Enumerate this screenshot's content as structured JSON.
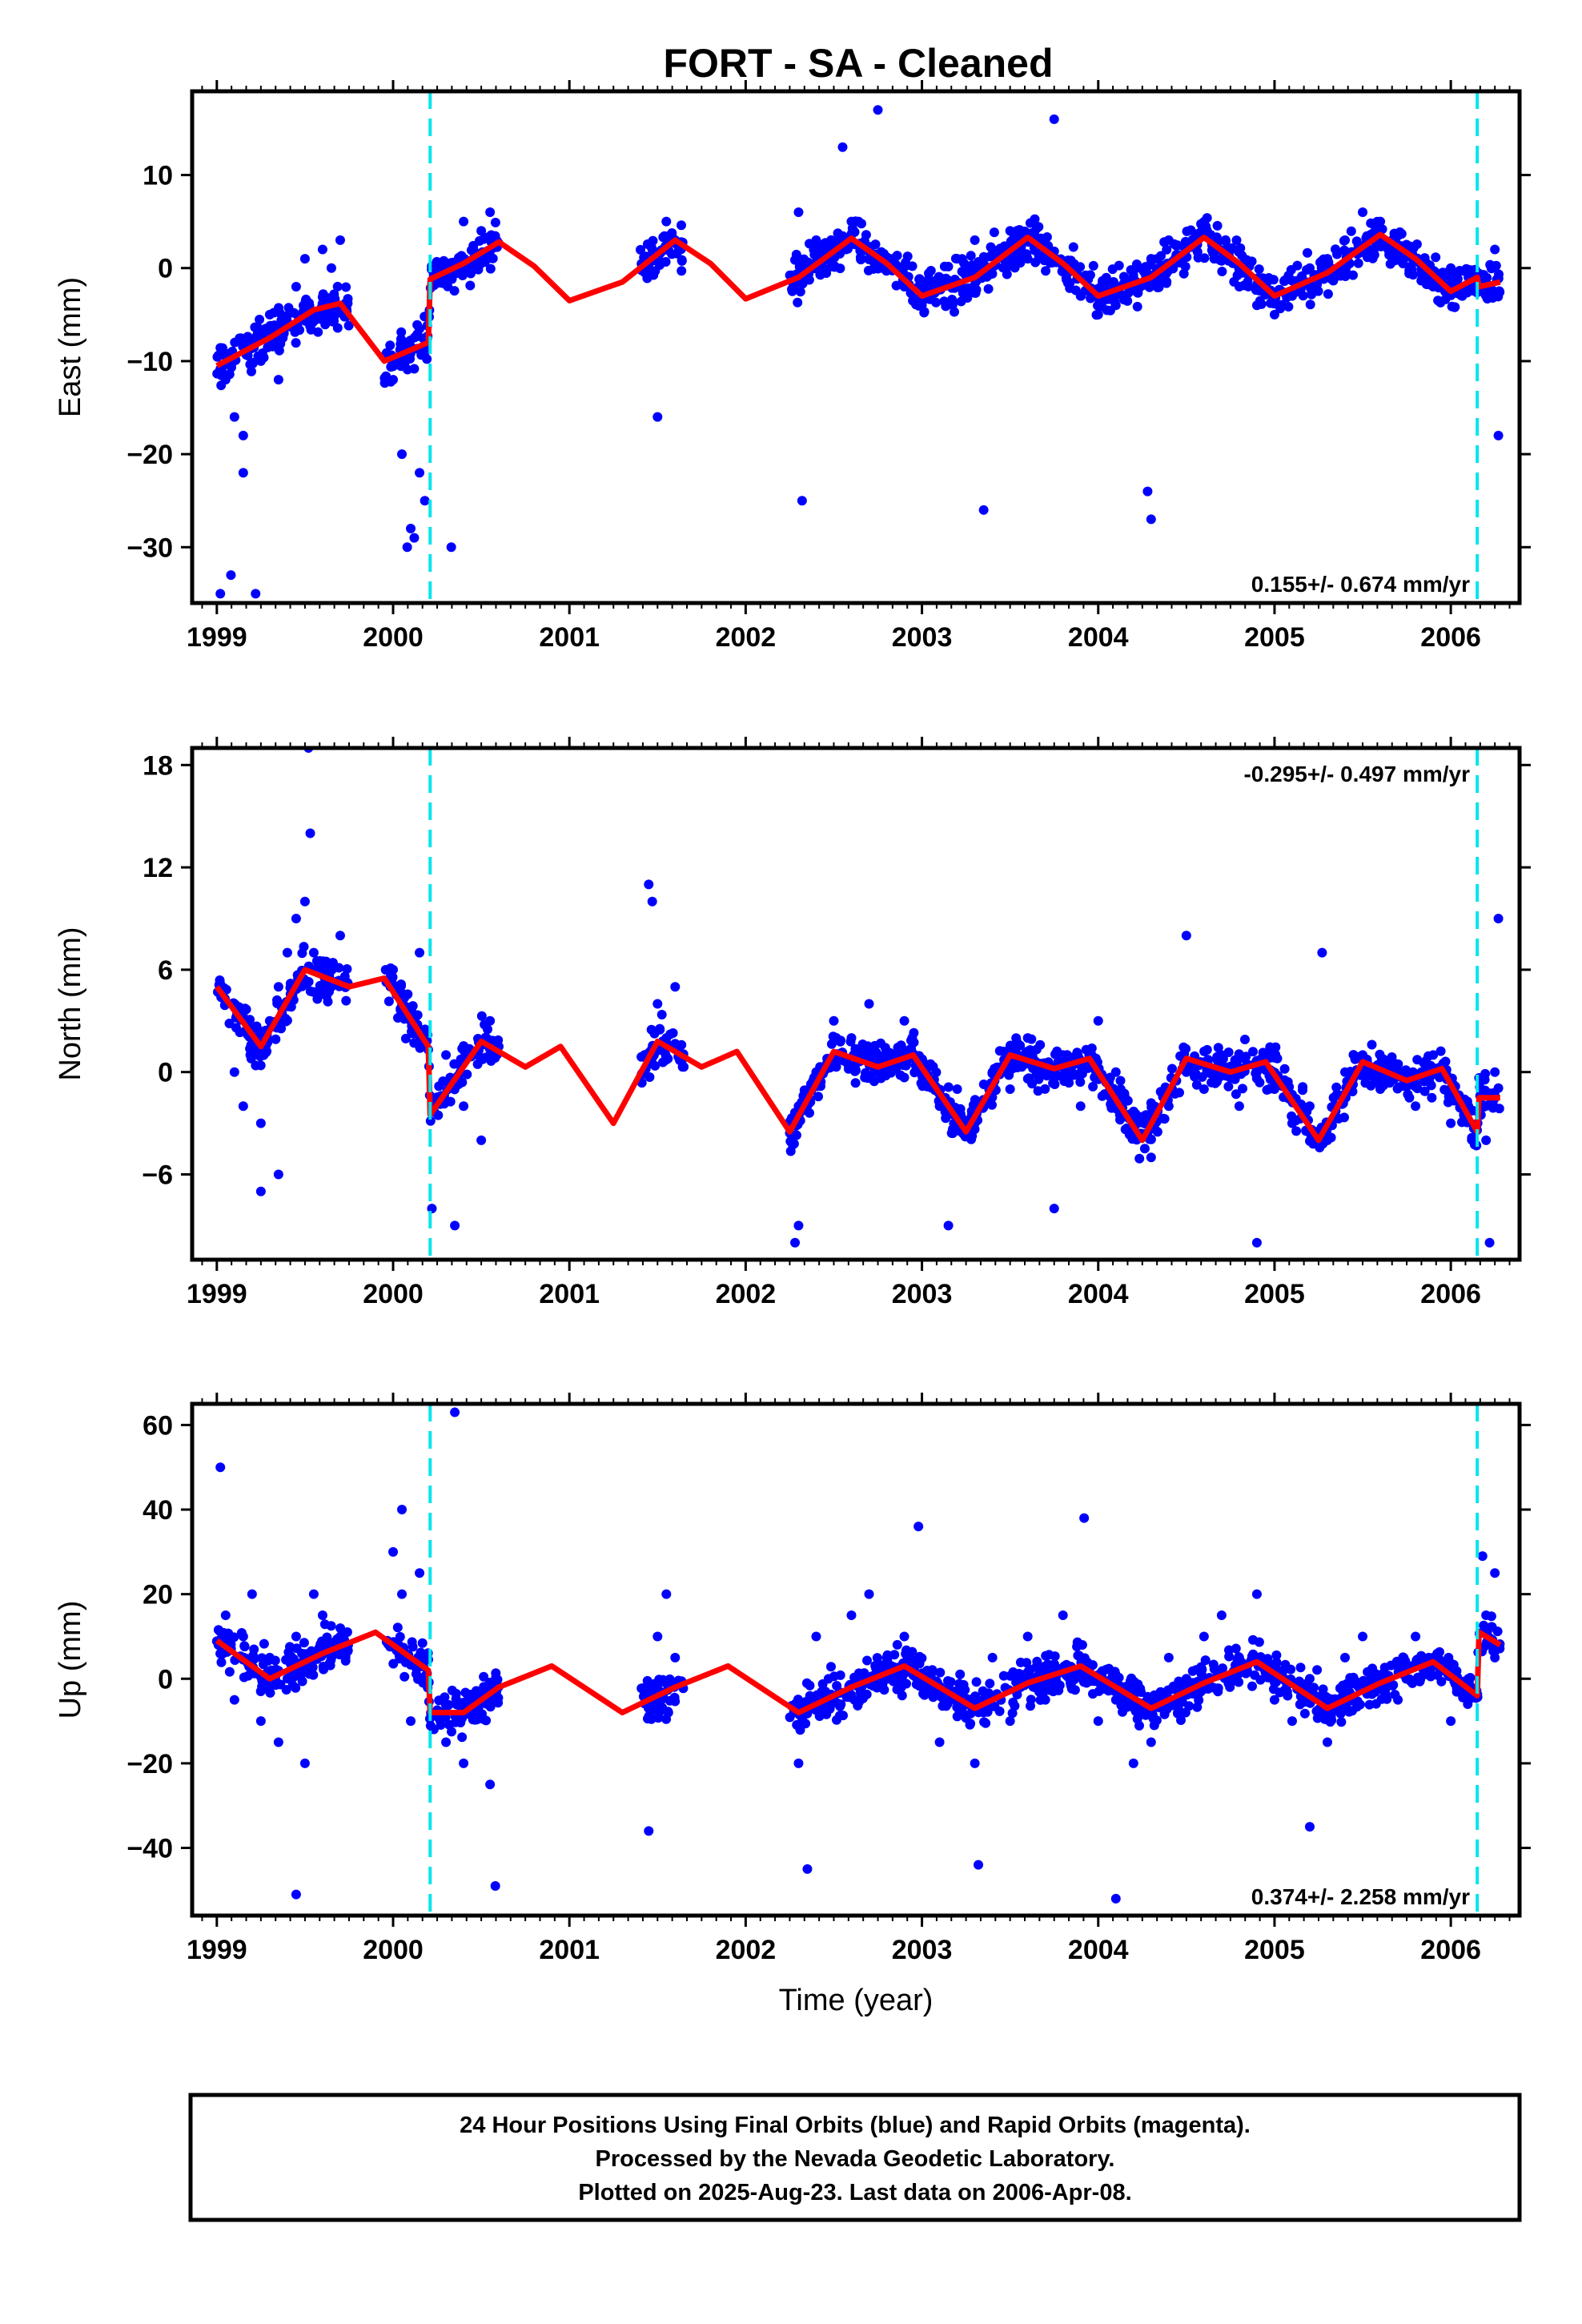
{
  "title": "FORT  - SA - Cleaned",
  "footer": {
    "lines": [
      "24 Hour Positions Using Final Orbits (blue) and Rapid Orbits (magenta).",
      "Processed by the Nevada Geodetic Laboratory.",
      "Plotted on 2025-Aug-23. Last data on 2006-Apr-08."
    ]
  },
  "colors": {
    "points": "#0000ff",
    "model": "#ff0000",
    "breaks": "#00e5ee",
    "frame": "#000000"
  },
  "chart_data": [
    {
      "type": "scatter",
      "ylabel": "East (mm)",
      "xlabel": "",
      "xlim": [
        1998.86,
        2006.39
      ],
      "ylim": [
        -36,
        19
      ],
      "xticks": [
        1999,
        2000,
        2001,
        2002,
        2003,
        2004,
        2005,
        2006
      ],
      "yticks": [
        10,
        0,
        -10,
        -20,
        -30
      ],
      "rate": "0.155+/- 0.674 mm/yr",
      "rate_position": "bottom-right",
      "breaks": [
        2000.21,
        2006.15
      ],
      "data_segments": [
        [
          1999.0,
          1999.75
        ],
        [
          1999.95,
          2000.6
        ],
        [
          2001.4,
          2001.65
        ],
        [
          2002.25,
          2006.28
        ]
      ],
      "model": {
        "x": [
          1999.0,
          1999.3,
          1999.55,
          1999.7,
          1999.95,
          2000.2,
          2000.21,
          2000.4,
          2000.6,
          2000.8,
          2001.0,
          2001.3,
          2001.6,
          2001.8,
          2002.0,
          2002.3,
          2002.6,
          2002.8,
          2003.0,
          2003.3,
          2003.6,
          2003.8,
          2004.0,
          2004.3,
          2004.6,
          2004.8,
          2005.0,
          2005.3,
          2005.6,
          2005.8,
          2006.0,
          2006.15,
          2006.16,
          2006.28
        ],
        "y": [
          -10.5,
          -7.5,
          -4.5,
          -3.8,
          -10.0,
          -8.0,
          -1.2,
          0.5,
          2.8,
          0.2,
          -3.5,
          -1.5,
          3.0,
          0.5,
          -3.3,
          -1.0,
          3.2,
          0.5,
          -3.0,
          -1.0,
          3.3,
          0.5,
          -3.0,
          -1.0,
          3.3,
          0.5,
          -3.0,
          -0.5,
          3.6,
          1.0,
          -2.5,
          -1.0,
          -2.0,
          -1.5
        ]
      },
      "points": {
        "x": [
          1999.05,
          1999.1,
          1999.15,
          1999.2,
          1999.25,
          1999.3,
          1999.35,
          1999.4,
          1999.45,
          1999.5,
          1999.55,
          1999.6,
          1999.65,
          1999.7,
          2000.0,
          2000.05,
          2000.1,
          2000.15,
          2000.3,
          2000.4,
          2000.5,
          2000.55,
          2001.5,
          2001.55,
          2001.6,
          2002.3,
          2002.4,
          2002.5,
          2002.6,
          2002.7,
          2002.8,
          2002.9,
          2003.0,
          2003.1,
          2003.2,
          2003.3,
          2003.4,
          2003.5,
          2003.6,
          2003.7,
          2003.8,
          2003.9,
          2004.0,
          2004.1,
          2004.2,
          2004.3,
          2004.4,
          2004.5,
          2004.6,
          2004.7,
          2004.8,
          2004.9,
          2005.0,
          2005.1,
          2005.2,
          2005.3,
          2005.4,
          2005.5,
          2005.6,
          2005.7,
          2005.8,
          2005.9,
          2006.0,
          2006.1,
          2006.2,
          2006.25,
          1999.02,
          1999.08,
          1999.15,
          1999.22,
          2000.08,
          2000.12,
          2000.18,
          2000.33,
          2001.5,
          2002.32,
          2002.75,
          2003.35,
          2003.75,
          2004.28,
          2004.3,
          2006.27,
          2002.55
        ],
        "y": [
          -12,
          -16,
          -18,
          -8,
          -10,
          -5,
          -12,
          -6,
          -2,
          1,
          -5,
          2,
          0,
          3,
          -12,
          -20,
          -28,
          -22,
          -1,
          5,
          4,
          6,
          1,
          5,
          3,
          6,
          3,
          2,
          5,
          1,
          0,
          -2,
          -4,
          -2,
          1,
          3,
          2,
          4,
          1,
          2,
          0,
          -3,
          -5,
          -4,
          -1,
          1,
          3,
          2,
          4,
          1,
          -2,
          -4,
          -5,
          -3,
          0,
          1,
          3,
          6,
          5,
          2,
          1,
          -2,
          0,
          -1,
          -3,
          2,
          -35,
          -33,
          -22,
          -35,
          -30,
          -29,
          -25,
          -30,
          -16,
          -25,
          17,
          -26,
          16,
          -24,
          -27,
          -18,
          13
        ]
      }
    },
    {
      "type": "scatter",
      "ylabel": "North (mm)",
      "xlabel": "",
      "xlim": [
        1998.86,
        2006.39
      ],
      "ylim": [
        -11,
        19
      ],
      "xticks": [
        1999,
        2000,
        2001,
        2002,
        2003,
        2004,
        2005,
        2006
      ],
      "yticks": [
        18,
        12,
        6,
        0,
        -6
      ],
      "rate": "-0.295+/- 0.497 mm/yr",
      "rate_position": "top-right",
      "breaks": [
        2000.21,
        2006.15
      ],
      "data_segments": [
        [
          1999.0,
          1999.75
        ],
        [
          1999.95,
          2000.6
        ],
        [
          2001.4,
          2001.65
        ],
        [
          2002.25,
          2006.28
        ]
      ],
      "model": {
        "x": [
          1999.0,
          1999.25,
          1999.5,
          1999.75,
          1999.95,
          2000.2,
          2000.21,
          2000.5,
          2000.75,
          2000.95,
          2001.25,
          2001.5,
          2001.75,
          2001.95,
          2002.25,
          2002.5,
          2002.75,
          2002.95,
          2003.25,
          2003.5,
          2003.75,
          2003.95,
          2004.25,
          2004.5,
          2004.75,
          2004.95,
          2005.25,
          2005.5,
          2005.75,
          2005.95,
          2006.15,
          2006.16,
          2006.28
        ],
        "y": [
          5.0,
          1.5,
          6.0,
          5.0,
          5.5,
          1.5,
          -2.5,
          1.8,
          0.3,
          1.5,
          -3.0,
          1.8,
          0.3,
          1.2,
          -3.5,
          1.2,
          0.3,
          1.0,
          -3.5,
          1.0,
          0.2,
          0.8,
          -4.0,
          0.8,
          0.0,
          0.6,
          -4.0,
          0.6,
          -0.5,
          0.2,
          -3.5,
          -1.5,
          -1.5
        ]
      },
      "points": {
        "x": [
          1999.05,
          1999.1,
          1999.15,
          1999.2,
          1999.25,
          1999.3,
          1999.35,
          1999.4,
          1999.45,
          1999.5,
          1999.55,
          1999.6,
          1999.65,
          1999.7,
          2000.0,
          2000.05,
          2000.1,
          2000.15,
          2000.3,
          2000.4,
          2000.5,
          2000.55,
          2001.5,
          2001.55,
          2001.6,
          2002.3,
          2002.4,
          2002.5,
          2002.6,
          2002.7,
          2002.8,
          2002.9,
          2003.0,
          2003.1,
          2003.2,
          2003.3,
          2003.4,
          2003.5,
          2003.6,
          2003.7,
          2003.8,
          2003.9,
          2004.0,
          2004.1,
          2004.2,
          2004.3,
          2004.4,
          2004.5,
          2004.6,
          2004.7,
          2004.8,
          2004.9,
          2005.0,
          2005.1,
          2005.2,
          2005.3,
          2005.4,
          2005.5,
          2005.6,
          2005.7,
          2005.8,
          2005.9,
          2006.0,
          2006.1,
          2006.2,
          2006.25,
          1999.52,
          1999.53,
          1999.25,
          1999.35,
          2000.22,
          2000.35,
          2001.45,
          2001.47,
          2002.28,
          2002.3,
          2003.15,
          2003.75,
          2004.5,
          2004.9,
          2005.27,
          2006.22,
          2006.27
        ],
        "y": [
          4,
          0,
          -2,
          2,
          -3,
          3,
          5,
          7,
          9,
          10,
          7,
          6,
          5,
          8,
          6,
          4,
          3,
          7,
          1,
          -2,
          -4,
          3,
          4,
          2,
          5,
          -2,
          0,
          3,
          2,
          4,
          1,
          3,
          0,
          -2,
          -1,
          -3,
          0,
          -1,
          2,
          0,
          1,
          -2,
          3,
          0,
          -3,
          -5,
          -2,
          0,
          -1,
          1,
          -2,
          0,
          -1,
          -3,
          -2,
          -4,
          0,
          1,
          -1,
          0,
          -2,
          1,
          -3,
          -2,
          -4,
          0,
          19,
          14,
          -7,
          -6,
          -8,
          -9,
          11,
          10,
          -10,
          -9,
          -9,
          -8,
          8,
          -10,
          7,
          -10,
          9
        ]
      }
    },
    {
      "type": "scatter",
      "ylabel": "Up (mm)",
      "xlabel": "Time (year)",
      "xlim": [
        1998.86,
        2006.39
      ],
      "ylim": [
        -56,
        65
      ],
      "xticks": [
        1999,
        2000,
        2001,
        2002,
        2003,
        2004,
        2005,
        2006
      ],
      "yticks": [
        60,
        40,
        20,
        0,
        -20,
        -40
      ],
      "rate": "0.374+/- 2.258 mm/yr",
      "rate_position": "bottom-right",
      "breaks": [
        2000.21,
        2006.15
      ],
      "data_segments": [
        [
          1999.0,
          1999.75
        ],
        [
          1999.95,
          2000.6
        ],
        [
          2001.4,
          2001.65
        ],
        [
          2002.25,
          2006.28
        ]
      ],
      "model": {
        "x": [
          1999.0,
          1999.3,
          1999.6,
          1999.9,
          2000.2,
          2000.21,
          2000.4,
          2000.6,
          2000.9,
          2001.3,
          2001.6,
          2001.9,
          2002.3,
          2002.6,
          2002.9,
          2003.3,
          2003.6,
          2003.9,
          2004.3,
          2004.6,
          2004.9,
          2005.3,
          2005.6,
          2005.9,
          2006.15,
          2006.16,
          2006.28
        ],
        "y": [
          9,
          0,
          6,
          11,
          2,
          -8,
          -8,
          -2,
          3,
          -8,
          -2,
          3,
          -8,
          -2,
          3,
          -7,
          -1,
          3,
          -7,
          -1,
          4,
          -7,
          -1,
          4,
          -4,
          11,
          8
        ]
      },
      "points": {
        "x": [
          1999.05,
          1999.1,
          1999.15,
          1999.2,
          1999.25,
          1999.3,
          1999.35,
          1999.4,
          1999.45,
          1999.5,
          1999.55,
          1999.6,
          1999.65,
          1999.7,
          2000.0,
          2000.05,
          2000.1,
          2000.15,
          2000.3,
          2000.4,
          2000.5,
          2000.55,
          2001.5,
          2001.55,
          2001.6,
          2002.3,
          2002.4,
          2002.5,
          2002.6,
          2002.7,
          2002.8,
          2002.9,
          2003.0,
          2003.1,
          2003.2,
          2003.3,
          2003.4,
          2003.5,
          2003.6,
          2003.7,
          2003.8,
          2003.9,
          2004.0,
          2004.1,
          2004.2,
          2004.3,
          2004.4,
          2004.5,
          2004.6,
          2004.7,
          2004.8,
          2004.9,
          2005.0,
          2005.1,
          2005.2,
          2005.3,
          2005.4,
          2005.5,
          2005.6,
          2005.7,
          2005.8,
          2005.9,
          2006.0,
          2006.1,
          2006.2,
          2006.25,
          1999.02,
          1999.45,
          2000.05,
          2000.35,
          2000.58,
          2001.45,
          2002.35,
          2002.98,
          2003.32,
          2003.92,
          2004.1,
          2005.2,
          2006.18,
          2006.25
        ],
        "y": [
          15,
          -5,
          10,
          20,
          -10,
          5,
          -15,
          0,
          10,
          -20,
          20,
          15,
          5,
          10,
          30,
          20,
          -10,
          25,
          -15,
          -20,
          -5,
          -25,
          10,
          20,
          5,
          -20,
          10,
          -5,
          15,
          20,
          5,
          10,
          0,
          -15,
          -5,
          -20,
          5,
          -10,
          10,
          -5,
          15,
          5,
          -10,
          -5,
          -20,
          -15,
          5,
          0,
          10,
          15,
          5,
          20,
          -5,
          -10,
          0,
          -15,
          5,
          10,
          0,
          -5,
          10,
          5,
          -10,
          0,
          15,
          5,
          50,
          -51,
          40,
          63,
          -49,
          -36,
          -45,
          36,
          -44,
          38,
          -52,
          -35,
          29,
          25
        ]
      }
    }
  ]
}
